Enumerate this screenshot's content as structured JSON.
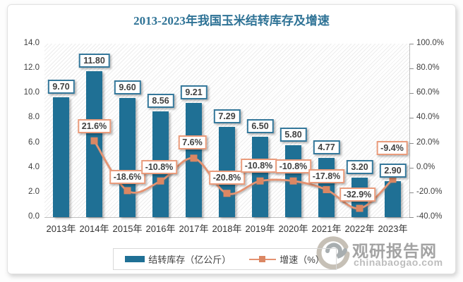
{
  "title": "2013-2023年我国玉米结转库存及增速",
  "legend": {
    "inventory_label": "结转库存（亿公斤）",
    "growth_label": "增速（%）"
  },
  "watermark": {
    "name": "观研报告网",
    "domain": "chinabaogao.com"
  },
  "colors": {
    "title": "#2F7396",
    "bar": "#1F7095",
    "bar_label_border": "#35789B",
    "line": "#E59372",
    "marker": "#DB8763",
    "line_label_border": "#EA9C7C"
  },
  "chart_data": {
    "type": "bar+line",
    "title": "2013-2023年我国玉米结转库存及增速",
    "categories": [
      "2013年",
      "2014年",
      "2015年",
      "2016年",
      "2017年",
      "2018年",
      "2019年",
      "2020年",
      "2021年",
      "2022年",
      "2023年"
    ],
    "series": [
      {
        "name": "结转库存（亿公斤）",
        "type": "bar",
        "axis": "left",
        "values": [
          9.7,
          11.8,
          9.6,
          8.56,
          9.21,
          7.29,
          6.5,
          5.8,
          4.77,
          3.2,
          2.9
        ],
        "labels": [
          "9.70",
          "11.80",
          "9.60",
          "8.56",
          "9.21",
          "7.29",
          "6.50",
          "5.80",
          "4.77",
          "3.20",
          "2.90"
        ]
      },
      {
        "name": "增速（%）",
        "type": "line",
        "axis": "right",
        "values": [
          null,
          21.6,
          -18.6,
          -10.8,
          7.6,
          -20.8,
          -10.8,
          -10.8,
          -17.8,
          -32.9,
          -9.4
        ],
        "labels": [
          null,
          "21.6%",
          "-18.6%",
          "-10.8%",
          "7.6%",
          "-20.8%",
          "-10.8%",
          "-10.8%",
          "-17.8%",
          "-32.9%",
          "-9.4%"
        ]
      }
    ],
    "left_axis": {
      "min": 0,
      "max": 14,
      "step": 2,
      "ticks": [
        "14.0",
        "12.0",
        "10.0",
        "8.0",
        "6.0",
        "4.0",
        "2.0",
        "0.0"
      ]
    },
    "right_axis": {
      "min": -40,
      "max": 100,
      "step": 20,
      "ticks": [
        "100.0%",
        "80.0%",
        "60.0%",
        "40.0%",
        "20.0%",
        "0.0%",
        "-20.0%",
        "-40.0%"
      ]
    },
    "grid": false,
    "smooth_line": true,
    "legend_position": "bottom",
    "line_label_offsets": {
      "dx": [
        0,
        0,
        -2,
        -2,
        0,
        -2,
        0,
        0,
        -3,
        -1
      ],
      "dy": [
        -21,
        -19,
        -20,
        -22,
        -22,
        -22,
        -21,
        -19,
        -20,
        -44
      ]
    }
  }
}
